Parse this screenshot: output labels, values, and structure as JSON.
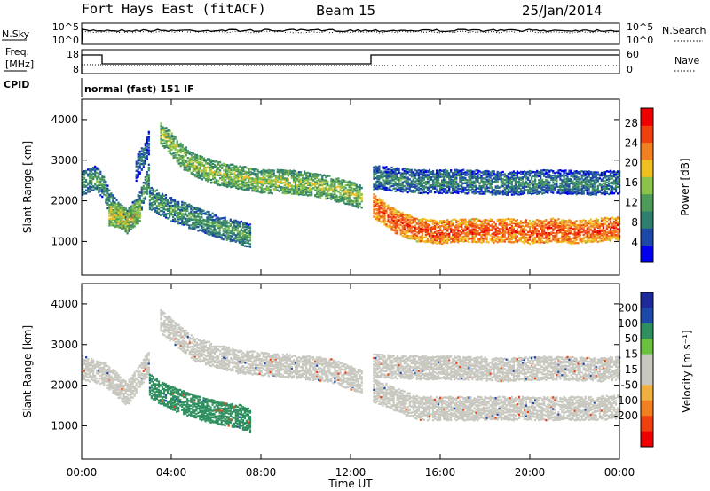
{
  "header": {
    "station": "Fort Hays East (fitACF)",
    "beam": "Beam 15",
    "date": "25/Jan/2014"
  },
  "noise_panel": {
    "left_label": "N.Sky",
    "right_label": "N.Search",
    "left_ticks": [
      "10^5",
      "10^0"
    ],
    "right_ticks": [
      "10^5",
      "10^0"
    ]
  },
  "freq_panel": {
    "left_label_line1": "Freq.",
    "left_label_line2": "[MHz]",
    "right_label": "Nave",
    "left_ticks": [
      "18",
      "8"
    ],
    "right_ticks": [
      "60",
      "0"
    ],
    "cpid_label": "CPID",
    "cpid_text": "normal (fast) 151 IF"
  },
  "colors": {
    "power_scale": [
      "#0000ee",
      "#1e48a8",
      "#2f7f6e",
      "#4d9a59",
      "#8bc34a",
      "#f0c020",
      "#f08020",
      "#f04010",
      "#ee0000"
    ],
    "velocity_scale": [
      "#ee0000",
      "#f04010",
      "#f08020",
      "#f0b040",
      "#c8c8c0",
      "#c8c8c0",
      "#6cc040",
      "#2f8f5f",
      "#1e48a8",
      "#1e2a9c"
    ]
  },
  "chart_data": [
    {
      "type": "heatmap",
      "title": "",
      "xlabel": "Time UT",
      "ylabel": "Slant Range [km]",
      "x_ticks": [
        "00:00",
        "04:00",
        "08:00",
        "12:00",
        "16:00",
        "20:00",
        "00:00"
      ],
      "y_ticks": [
        "1000",
        "2000",
        "3000",
        "4000"
      ],
      "xlim": [
        0,
        24
      ],
      "ylim": [
        180,
        4500
      ],
      "colorbar_label": "Power [dB]",
      "colorbar_ticks": [
        "4",
        "8",
        "12",
        "16",
        "20",
        "24",
        "28"
      ],
      "colorbar_range": [
        0,
        31
      ],
      "bands": [
        {
          "t": [
            0.0,
            0.6,
            1.0,
            1.2,
            1.6,
            2.0,
            2.6,
            3.0
          ],
          "r": [
            2450,
            2600,
            2300,
            2000,
            1700,
            1500,
            2000,
            2700
          ],
          "power": 12
        },
        {
          "t": [
            1.2,
            1.6,
            2.0,
            2.6
          ],
          "r": [
            1700,
            1650,
            1550,
            1800
          ],
          "power": 18
        },
        {
          "t": [
            2.4,
            2.8,
            3.0
          ],
          "r": [
            2800,
            3200,
            3500
          ],
          "power": 8
        },
        {
          "t": [
            3.0,
            4.0,
            5.0,
            6.0,
            7.0,
            7.5
          ],
          "r": [
            2100,
            1800,
            1600,
            1400,
            1250,
            1150
          ],
          "power": 12
        },
        {
          "t": [
            3.5,
            4.0,
            4.5,
            5.0,
            6.0,
            7.0,
            8.0,
            9.0,
            10.0,
            11.0,
            12.0,
            12.5
          ],
          "r": [
            3700,
            3400,
            3100,
            2900,
            2700,
            2600,
            2500,
            2500,
            2450,
            2350,
            2200,
            2100
          ],
          "power": 16
        },
        {
          "t": [
            13.0,
            14.0,
            15.0,
            16.0,
            17.0,
            18.0,
            19.0,
            20.0,
            21.0,
            22.0,
            23.0,
            24.0
          ],
          "r": [
            1900,
            1500,
            1300,
            1250,
            1300,
            1280,
            1300,
            1250,
            1300,
            1250,
            1300,
            1350
          ],
          "power": 26
        },
        {
          "t": [
            13.0,
            15.0,
            17.0,
            19.0,
            21.0,
            23.0,
            24.0
          ],
          "r": [
            2600,
            2500,
            2500,
            2450,
            2500,
            2450,
            2500
          ],
          "power": 10
        }
      ]
    },
    {
      "type": "heatmap",
      "title": "",
      "xlabel": "Time UT",
      "ylabel": "Slant Range [km]",
      "x_ticks": [
        "00:00",
        "04:00",
        "08:00",
        "12:00",
        "16:00",
        "20:00",
        "00:00"
      ],
      "y_ticks": [
        "1000",
        "2000",
        "3000",
        "4000"
      ],
      "xlim": [
        0,
        24
      ],
      "ylim": [
        180,
        4500
      ],
      "colorbar_label": "Velocity [m s⁻¹]",
      "colorbar_ticks": [
        "200",
        "100",
        "50",
        "15",
        "-15",
        "-50",
        "-100",
        "-200"
      ],
      "bands": [
        {
          "t": [
            0.0,
            1.0,
            2.0,
            3.0
          ],
          "r": [
            2450,
            2300,
            1800,
            2600
          ],
          "velocity": 0
        },
        {
          "t": [
            3.5,
            5.0,
            7.0,
            9.0,
            11.0,
            12.5
          ],
          "r": [
            3600,
            2900,
            2600,
            2500,
            2400,
            2100
          ],
          "velocity": 0
        },
        {
          "t": [
            3.0,
            4.0,
            5.0,
            6.0,
            7.0,
            7.5
          ],
          "r": [
            2000,
            1700,
            1500,
            1350,
            1250,
            1150
          ],
          "velocity": 60
        },
        {
          "t": [
            13.0,
            15.0,
            17.0,
            19.0,
            21.0,
            23.0,
            24.0
          ],
          "r": [
            1900,
            1450,
            1450,
            1450,
            1450,
            1450,
            1500
          ],
          "velocity": 0
        },
        {
          "t": [
            13.0,
            15.0,
            17.0,
            19.0,
            21.0,
            23.0,
            24.0
          ],
          "r": [
            2500,
            2450,
            2450,
            2400,
            2450,
            2400,
            2450
          ],
          "velocity": 0
        }
      ]
    }
  ]
}
